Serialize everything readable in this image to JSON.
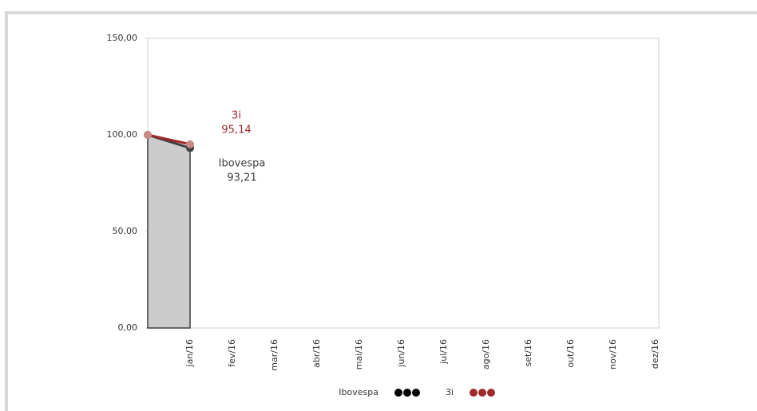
{
  "chart_data": {
    "type": "line",
    "categories": [
      null,
      "jan/16",
      "fev/16",
      "mar/16",
      "abr/16",
      "mai/16",
      "jun/16",
      "jul/16",
      "ago/16",
      "set/16",
      "out/16",
      "nov/16",
      "dez/16"
    ],
    "ylim": [
      0,
      150
    ],
    "yticks": [
      {
        "value": 0,
        "label": "0,00"
      },
      {
        "value": 50,
        "label": "50,00"
      },
      {
        "value": 100,
        "label": "100,00"
      },
      {
        "value": 150,
        "label": "150,00"
      }
    ],
    "series": [
      {
        "name": "Ibovespa",
        "color": "#3f3f3f",
        "marker_color": "#3f3f3f",
        "area": true,
        "area_color": "#cccccc",
        "values": [
          100,
          93.21,
          null,
          null,
          null,
          null,
          null,
          null,
          null,
          null,
          null,
          null,
          null
        ],
        "value_labels": [
          null,
          "93,21",
          null,
          null,
          null,
          null,
          null,
          null,
          null,
          null,
          null,
          null,
          null
        ]
      },
      {
        "name": "3i",
        "color": "#9e2a2b",
        "marker_color": "#c98a86",
        "area": false,
        "values": [
          100,
          95.14,
          null,
          null,
          null,
          null,
          null,
          null,
          null,
          null,
          null,
          null,
          null
        ],
        "value_labels": [
          null,
          "95,14",
          null,
          null,
          null,
          null,
          null,
          null,
          null,
          null,
          null,
          null,
          null
        ]
      }
    ]
  }
}
